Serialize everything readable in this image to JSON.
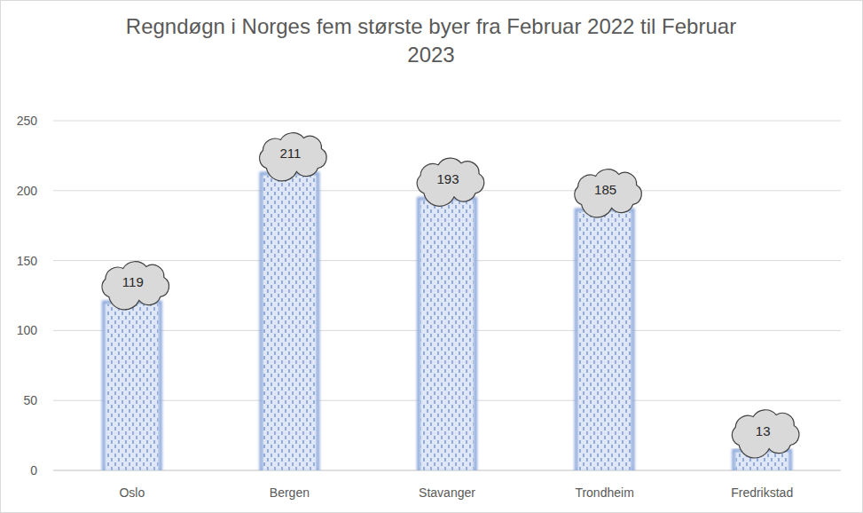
{
  "chart_data": {
    "type": "bar",
    "title": "Regndøgn i Norges fem største byer fra Februar 2022 til Februar 2023",
    "categories": [
      "Oslo",
      "Bergen",
      "Stavanger",
      "Trondheim",
      "Fredrikstad"
    ],
    "values": [
      119,
      211,
      193,
      185,
      13
    ],
    "color": "#4472c4",
    "ylim": [
      0,
      250
    ],
    "yticks": [
      0,
      50,
      100,
      150,
      200,
      250
    ],
    "grid": true,
    "data_labels": true
  }
}
